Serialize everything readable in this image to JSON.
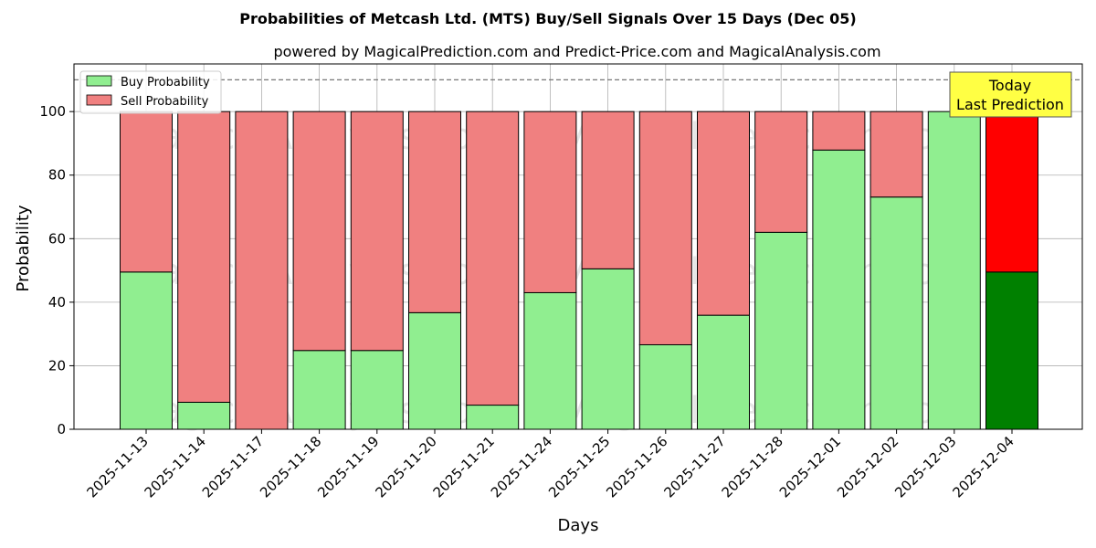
{
  "title": "Probabilities of Metcash Ltd. (MTS) Buy/Sell Signals Over 15 Days (Dec 05)",
  "subtitle": "powered by MagicalPrediction.com and Predict-Price.com and MagicalAnalysis.com",
  "watermarks": [
    "MagicalAnalysis.com",
    "MagicalPrediction.com"
  ],
  "annotation": {
    "line1": "Today",
    "line2": "Last Prediction"
  },
  "colors": {
    "buy": "#90ee90",
    "sell": "#f08080",
    "buy_today": "#008000",
    "sell_today": "#ff0000",
    "annotation_bg": "#ffff44"
  },
  "chart_data": {
    "type": "bar",
    "stacked": true,
    "xlabel": "Days",
    "ylabel": "Probability",
    "ylim": [
      0,
      115
    ],
    "yticks": [
      0,
      20,
      40,
      60,
      80,
      100
    ],
    "reference_line": 110,
    "grid": true,
    "legend_position": "upper left",
    "categories": [
      "2025-11-13",
      "2025-11-14",
      "2025-11-17",
      "2025-11-18",
      "2025-11-19",
      "2025-11-20",
      "2025-11-21",
      "2025-11-24",
      "2025-11-25",
      "2025-11-26",
      "2025-11-27",
      "2025-11-28",
      "2025-12-01",
      "2025-12-02",
      "2025-12-03",
      "2025-12-04"
    ],
    "series": [
      {
        "name": "Buy Probability",
        "values": [
          49.5,
          8.5,
          0,
          24.8,
          24.8,
          36.7,
          7.6,
          43.0,
          50.5,
          26.6,
          35.9,
          62.0,
          87.9,
          73.1,
          100,
          49.5
        ]
      },
      {
        "name": "Sell Probability",
        "values": [
          50.5,
          91.5,
          100,
          75.2,
          75.2,
          63.3,
          92.4,
          57.0,
          49.5,
          73.4,
          64.1,
          38.0,
          12.1,
          26.9,
          0,
          50.5
        ]
      }
    ]
  }
}
